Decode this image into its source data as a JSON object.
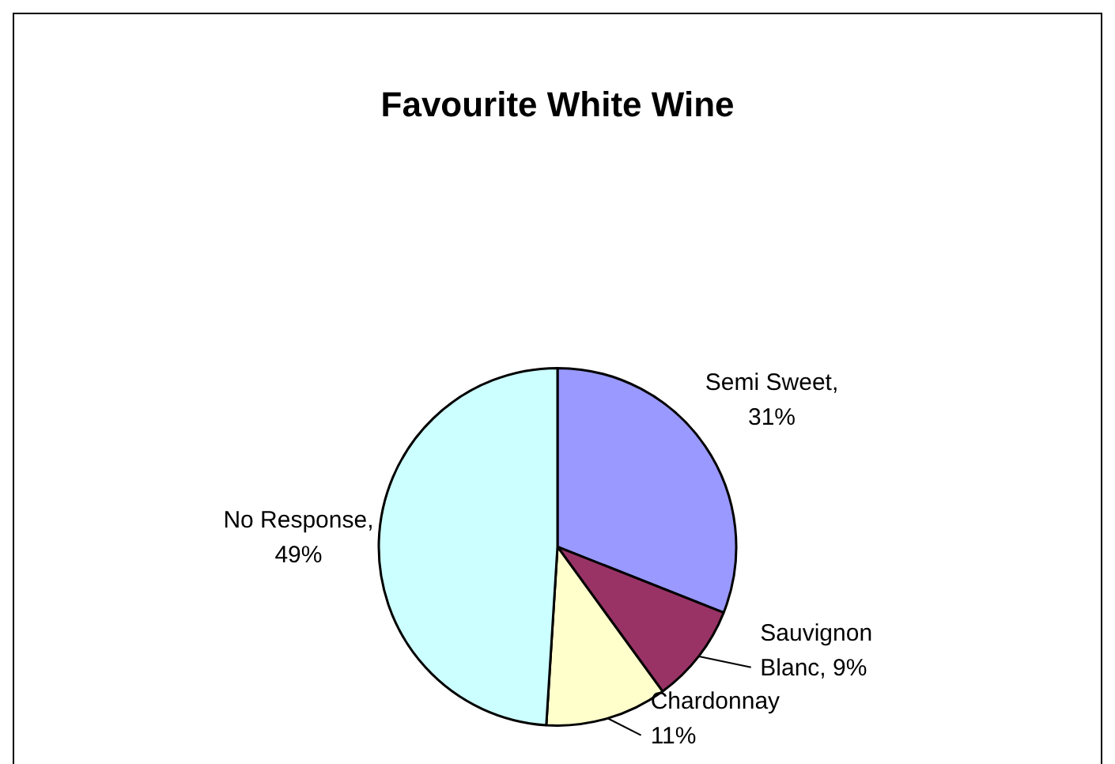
{
  "chart_data": {
    "type": "pie",
    "title": "Favourite White Wine",
    "categories": [
      "Semi Sweet",
      "Sauvignon Blanc",
      "Chardonnay",
      "No Response"
    ],
    "values": [
      31,
      9,
      11,
      49
    ],
    "colors": [
      "#9999ff",
      "#993366",
      "#ffffcc",
      "#ccffff"
    ],
    "value_labels": [
      ", 31%",
      ", 9%",
      "11%",
      ", 49%"
    ],
    "legend": false
  }
}
